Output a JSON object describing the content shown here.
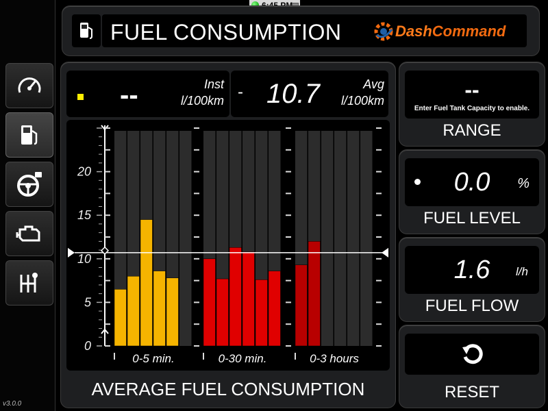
{
  "status_bar": {
    "time": "6:45 PM"
  },
  "sidebar": {
    "items": [
      {
        "name": "gauges",
        "icon": "speedometer-icon"
      },
      {
        "name": "fuel",
        "icon": "fuel-pump-icon",
        "active": true
      },
      {
        "name": "driving",
        "icon": "steering-wheel-icon"
      },
      {
        "name": "engine",
        "icon": "engine-icon"
      },
      {
        "name": "transmission",
        "icon": "gear-shift-icon"
      }
    ],
    "version": "v3.0.0"
  },
  "header": {
    "title": "FUEL CONSUMPTION",
    "logo_part1": "Dash",
    "logo_part2": "Command"
  },
  "readouts": {
    "inst_value": "--",
    "inst_label": "Inst",
    "inst_unit": "l/100km",
    "avg_prefix": "-",
    "avg_value": "10.7",
    "avg_label": "Avg",
    "avg_unit": "l/100km"
  },
  "chart_data": {
    "type": "bar",
    "title": "AVERAGE FUEL CONSUMPTION",
    "ylim": [
      0,
      25
    ],
    "y_ticks": [
      "0",
      "5",
      "10",
      "15",
      "20"
    ],
    "average_line": 10.7,
    "groups": [
      {
        "label": "0-5 min.",
        "color": "#f5b400",
        "values": [
          6.5,
          8.0,
          14.5,
          8.6,
          7.8
        ]
      },
      {
        "label": "0-30 min.",
        "color": "#e00000",
        "values": [
          10.0,
          7.7,
          11.3,
          10.8,
          7.6,
          8.6
        ]
      },
      {
        "label": "0-3 hours",
        "color": "#b80000",
        "values": [
          9.3,
          12.0,
          0,
          0,
          0,
          0
        ]
      }
    ]
  },
  "range": {
    "value": "--",
    "hint": "Enter Fuel Tank Capacity to enable.",
    "label": "RANGE"
  },
  "fuel_level": {
    "value": "0.0",
    "unit": "%",
    "label": "FUEL LEVEL"
  },
  "fuel_flow": {
    "value": "1.6",
    "unit": "l/h",
    "label": "FUEL FLOW"
  },
  "reset": {
    "label": "RESET"
  },
  "colors": {
    "accent": "#f26a10",
    "inst_indicator": "#ffee00",
    "bar_bg": "#2c2c2c"
  }
}
